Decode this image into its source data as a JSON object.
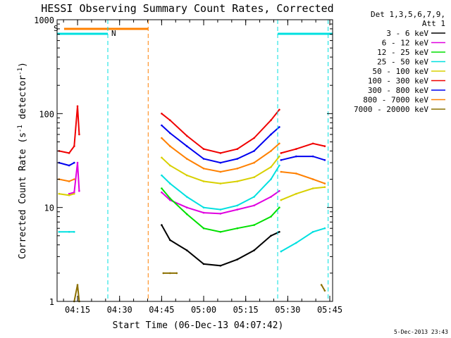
{
  "chart_data": {
    "type": "line",
    "title": "HESSI Observing Summary Count Rates, Corrected",
    "xlabel": "Start Time (06-Dec-13 04:07:42)",
    "ylabel": "Corrected Count Rate (s",
    "ylabel_sup1": "-1",
    "ylabel_mid": " detector",
    "ylabel_sup2": "-1",
    "ylabel_end": ")",
    "y_scale": "log",
    "ylim": [
      1,
      1000
    ],
    "xlim": [
      4.1283,
      5.7667
    ],
    "x_ticks": [
      {
        "value": 4.25,
        "label": "04:15"
      },
      {
        "value": 4.5,
        "label": "04:30"
      },
      {
        "value": 4.75,
        "label": "04:45"
      },
      {
        "value": 5.0,
        "label": "05:00"
      },
      {
        "value": 5.25,
        "label": "05:15"
      },
      {
        "value": 5.5,
        "label": "05:30"
      },
      {
        "value": 5.75,
        "label": "05:45"
      }
    ],
    "y_ticks": [
      {
        "value": 1,
        "label": "1"
      },
      {
        "value": 10,
        "label": "10"
      },
      {
        "value": 100,
        "label": "100"
      },
      {
        "value": 1000,
        "label": "1000"
      }
    ],
    "legend": {
      "placement": "right",
      "header": [
        "Det 1,3,5,6,7,9,",
        "Att 1"
      ],
      "entries": [
        {
          "label": "3 - 6 keV",
          "color": "#000000"
        },
        {
          "label": "6 - 12 keV",
          "color": "#e000e0"
        },
        {
          "label": "12 - 25 keV",
          "color": "#00e000"
        },
        {
          "label": "25 - 50 keV",
          "color": "#00e0e0"
        },
        {
          "label": "50 - 100 keV",
          "color": "#d8d000"
        },
        {
          "label": "100 - 300 keV",
          "color": "#f00000"
        },
        {
          "label": "300 - 800 keV",
          "color": "#0000f0"
        },
        {
          "label": "800 - 7000 keV",
          "color": "#ff8000"
        },
        {
          "label": "7000 - 20000 keV",
          "color": "#8c7000"
        }
      ]
    },
    "annotations": {
      "saa_label": "S",
      "night_label": "N",
      "saa_color": "#ff8000",
      "night_color": "#00e0e0",
      "saa_intervals": [
        [
          4.17,
          4.67
        ]
      ],
      "night_intervals": [
        [
          4.1283,
          4.43
        ],
        [
          5.44,
          5.7667
        ]
      ],
      "dashed_lines": [
        {
          "x": 4.43,
          "color": "#00e0e0"
        },
        {
          "x": 4.67,
          "color": "#ff8000"
        },
        {
          "x": 5.44,
          "color": "#00e0e0"
        },
        {
          "x": 5.74,
          "color": "#00e0e0"
        }
      ]
    },
    "series": [
      {
        "name": "3 - 6 keV",
        "color": "#000000",
        "segments": [
          {
            "x": [
              4.75,
              4.8,
              4.9,
              5.0,
              5.1,
              5.2,
              5.3,
              5.4,
              5.45
            ],
            "y": [
              6.5,
              4.5,
              3.5,
              2.5,
              2.4,
              2.8,
              3.5,
              5.0,
              5.5
            ]
          }
        ]
      },
      {
        "name": "6 - 12 keV",
        "color": "#e000e0",
        "segments": [
          {
            "x": [
              4.2,
              4.23,
              4.25,
              4.26
            ],
            "y": [
              14,
              14.5,
              30,
              15
            ]
          },
          {
            "x": [
              4.75,
              4.8,
              4.9,
              5.0,
              5.1,
              5.2,
              5.3,
              5.4,
              5.45
            ],
            "y": [
              14.5,
              12,
              10,
              8.8,
              8.6,
              9.5,
              10.5,
              13,
              15
            ]
          }
        ]
      },
      {
        "name": "12 - 25 keV",
        "color": "#00e000",
        "segments": [
          {
            "x": [
              4.75,
              4.8,
              4.9,
              5.0,
              5.1,
              5.2,
              5.3,
              5.4,
              5.45
            ],
            "y": [
              16,
              12.5,
              8.5,
              6,
              5.5,
              6,
              6.5,
              8,
              10
            ]
          }
        ]
      },
      {
        "name": "25 - 50 keV",
        "color": "#00e0e0",
        "segments": [
          {
            "x": [
              4.14,
              4.2,
              4.23
            ],
            "y": [
              5.5,
              5.5,
              5.5
            ]
          },
          {
            "x": [
              4.75,
              4.8,
              4.9,
              5.0,
              5.1,
              5.2,
              5.3,
              5.4,
              5.45
            ],
            "y": [
              22,
              18,
              13,
              10,
              9.5,
              10.5,
              13,
              20,
              28
            ]
          },
          {
            "x": [
              5.46,
              5.55,
              5.65,
              5.72
            ],
            "y": [
              3.4,
              4.2,
              5.5,
              6
            ]
          }
        ]
      },
      {
        "name": "50 - 100 keV",
        "color": "#d8d000",
        "segments": [
          {
            "x": [
              4.14,
              4.2,
              4.23
            ],
            "y": [
              14,
              13.5,
              14
            ]
          },
          {
            "x": [
              4.75,
              4.8,
              4.9,
              5.0,
              5.1,
              5.2,
              5.3,
              5.4,
              5.45
            ],
            "y": [
              34,
              28,
              22,
              19,
              18,
              19,
              21,
              27,
              35
            ]
          },
          {
            "x": [
              5.46,
              5.55,
              5.65,
              5.72
            ],
            "y": [
              12,
              14,
              16,
              16.5
            ]
          }
        ]
      },
      {
        "name": "100 - 300 keV",
        "color": "#f00000",
        "segments": [
          {
            "x": [
              4.14,
              4.2,
              4.23,
              4.25,
              4.26
            ],
            "y": [
              40,
              38,
              45,
              120,
              60
            ]
          },
          {
            "x": [
              4.75,
              4.8,
              4.9,
              5.0,
              5.1,
              5.2,
              5.3,
              5.4,
              5.45
            ],
            "y": [
              100,
              85,
              58,
              42,
              38,
              42,
              55,
              85,
              110
            ]
          },
          {
            "x": [
              5.46,
              5.55,
              5.65,
              5.72
            ],
            "y": [
              38,
              42,
              48,
              45
            ]
          }
        ]
      },
      {
        "name": "300 - 800 keV",
        "color": "#0000f0",
        "segments": [
          {
            "x": [
              4.14,
              4.2,
              4.23
            ],
            "y": [
              30,
              28,
              30
            ]
          },
          {
            "x": [
              4.75,
              4.8,
              4.9,
              5.0,
              5.1,
              5.2,
              5.3,
              5.4,
              5.45
            ],
            "y": [
              75,
              62,
              45,
              33,
              30,
              33,
              40,
              60,
              72
            ]
          },
          {
            "x": [
              5.46,
              5.55,
              5.65,
              5.72
            ],
            "y": [
              32,
              35,
              35,
              32
            ]
          }
        ]
      },
      {
        "name": "800 - 7000 keV",
        "color": "#ff8000",
        "segments": [
          {
            "x": [
              4.14,
              4.2,
              4.23
            ],
            "y": [
              20,
              19,
              20
            ]
          },
          {
            "x": [
              4.75,
              4.8,
              4.9,
              5.0,
              5.1,
              5.2,
              5.3,
              5.4,
              5.45
            ],
            "y": [
              55,
              45,
              33,
              26,
              24,
              26,
              30,
              40,
              48
            ]
          },
          {
            "x": [
              5.46,
              5.55,
              5.65,
              5.72
            ],
            "y": [
              24,
              23,
              20,
              18
            ]
          }
        ]
      },
      {
        "name": "7000 - 20000 keV",
        "color": "#8c7000",
        "segments": [
          {
            "x": [
              4.23,
              4.25,
              4.26
            ],
            "y": [
              1,
              1.5,
              1
            ]
          },
          {
            "x": [
              4.76,
              4.8,
              4.84
            ],
            "y": [
              2,
              2,
              2
            ]
          },
          {
            "x": [
              5.7,
              5.72
            ],
            "y": [
              1.5,
              1.3
            ]
          }
        ]
      }
    ]
  },
  "footer": {
    "timestamp": "5-Dec-2013 23:43"
  }
}
